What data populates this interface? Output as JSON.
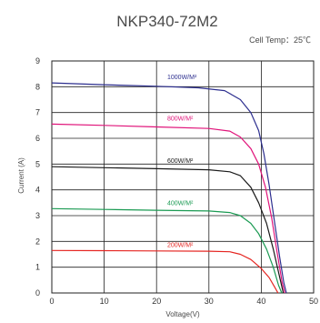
{
  "chart_data": {
    "type": "line",
    "title": "NKP340-72M2",
    "subtitle": "Cell Temp：25℃",
    "xlabel": "Voltage(V)",
    "ylabel": "Current (A)",
    "xlim": [
      0,
      50
    ],
    "ylim": [
      0,
      9
    ],
    "x_ticks": [
      0,
      10,
      20,
      30,
      40,
      50
    ],
    "y_ticks": [
      0,
      1,
      2,
      3,
      4,
      5,
      6,
      7,
      8,
      9
    ],
    "grid": true,
    "series": [
      {
        "name": "1000W/M²",
        "color": "#2d2f8f",
        "points": [
          [
            0,
            8.15
          ],
          [
            10,
            8.08
          ],
          [
            20,
            8.02
          ],
          [
            28,
            7.96
          ],
          [
            33,
            7.85
          ],
          [
            36,
            7.5
          ],
          [
            38,
            7.0
          ],
          [
            39.5,
            6.3
          ],
          [
            40.5,
            5.4
          ],
          [
            41.5,
            4.2
          ],
          [
            42.5,
            2.8
          ],
          [
            43.5,
            1.4
          ],
          [
            44.3,
            0.4
          ],
          [
            44.8,
            0
          ]
        ]
      },
      {
        "name": "800W/M²",
        "color": "#e0147a",
        "points": [
          [
            0,
            6.55
          ],
          [
            10,
            6.5
          ],
          [
            20,
            6.44
          ],
          [
            30,
            6.38
          ],
          [
            34,
            6.28
          ],
          [
            36,
            6.05
          ],
          [
            38,
            5.6
          ],
          [
            39.5,
            5.0
          ],
          [
            40.8,
            4.1
          ],
          [
            42,
            2.9
          ],
          [
            43,
            1.6
          ],
          [
            44,
            0.4
          ],
          [
            44.5,
            0
          ]
        ]
      },
      {
        "name": "600W/M²",
        "color": "#1a1a1a",
        "points": [
          [
            0,
            4.9
          ],
          [
            10,
            4.86
          ],
          [
            20,
            4.82
          ],
          [
            30,
            4.78
          ],
          [
            34,
            4.7
          ],
          [
            36,
            4.55
          ],
          [
            38,
            4.1
          ],
          [
            39.5,
            3.5
          ],
          [
            41,
            2.7
          ],
          [
            42.3,
            1.7
          ],
          [
            43.3,
            0.8
          ],
          [
            44.2,
            0
          ]
        ]
      },
      {
        "name": "400W/M²",
        "color": "#1a9a52",
        "points": [
          [
            0,
            3.27
          ],
          [
            10,
            3.24
          ],
          [
            20,
            3.21
          ],
          [
            30,
            3.18
          ],
          [
            34,
            3.12
          ],
          [
            36,
            3.0
          ],
          [
            38,
            2.7
          ],
          [
            39.5,
            2.3
          ],
          [
            41,
            1.7
          ],
          [
            42.3,
            1.0
          ],
          [
            43.3,
            0.3
          ],
          [
            43.9,
            0
          ]
        ]
      },
      {
        "name": "200W/M²",
        "color": "#e52521",
        "points": [
          [
            0,
            1.65
          ],
          [
            10,
            1.64
          ],
          [
            20,
            1.63
          ],
          [
            30,
            1.62
          ],
          [
            34,
            1.6
          ],
          [
            36,
            1.5
          ],
          [
            38,
            1.3
          ],
          [
            40,
            0.95
          ],
          [
            41.5,
            0.6
          ],
          [
            42.5,
            0.25
          ],
          [
            43.2,
            0
          ]
        ]
      }
    ]
  }
}
